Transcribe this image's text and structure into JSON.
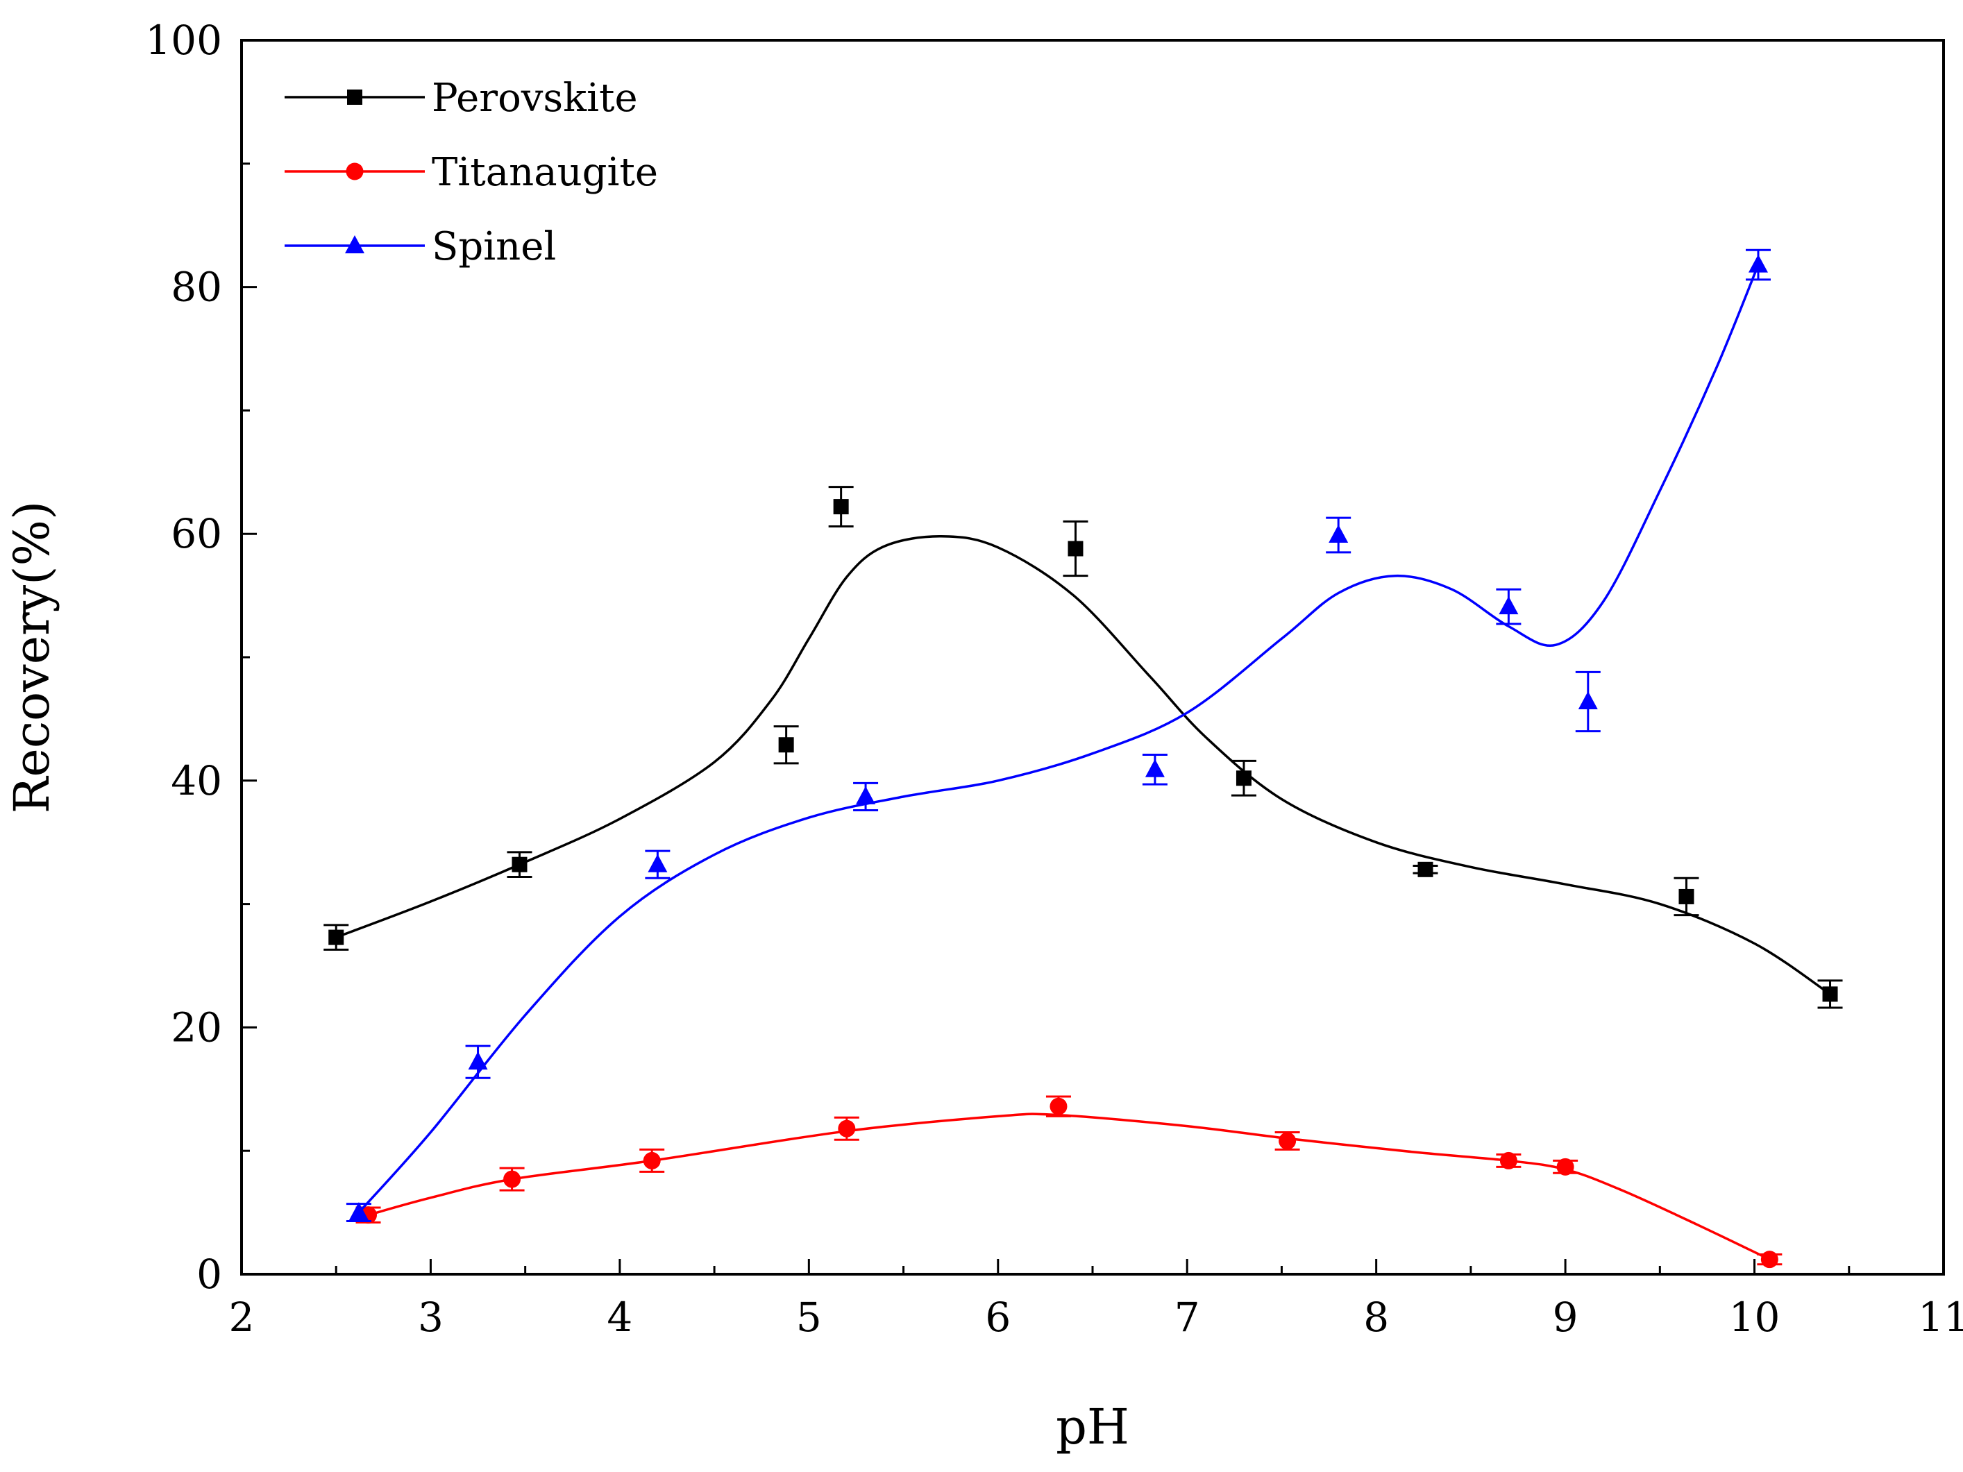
{
  "chart_data": {
    "type": "scatter",
    "title": "",
    "xlabel": "pH",
    "ylabel": "Recovery(%)",
    "xlim": [
      2,
      11
    ],
    "ylim": [
      0,
      100
    ],
    "xticks": [
      2,
      3,
      4,
      5,
      6,
      7,
      8,
      9,
      10,
      11
    ],
    "yticks": [
      0,
      20,
      40,
      60,
      80,
      100
    ],
    "legend_position": "top-left",
    "series": [
      {
        "name": "Perovskite",
        "color": "#000000",
        "marker": "square",
        "x": [
          2.5,
          3.47,
          4.88,
          5.17,
          6.41,
          7.3,
          8.26,
          9.64,
          10.4
        ],
        "y": [
          27.3,
          33.2,
          42.9,
          62.2,
          58.8,
          40.2,
          32.8,
          30.6,
          22.7
        ],
        "err": [
          1.0,
          1.0,
          1.5,
          1.6,
          2.2,
          1.4,
          0.3,
          1.5,
          1.1
        ],
        "curve_x": [
          2.5,
          3.0,
          3.5,
          4.0,
          4.5,
          4.8,
          5.0,
          5.2,
          5.4,
          5.7,
          6.0,
          6.4,
          6.8,
          7.1,
          7.5,
          8.0,
          8.5,
          9.0,
          9.5,
          10.0,
          10.4
        ],
        "curve_y": [
          27.3,
          30.2,
          33.4,
          36.9,
          41.5,
          46.5,
          51.5,
          56.5,
          59.0,
          59.8,
          58.9,
          55.0,
          48.5,
          43.5,
          38.5,
          35.0,
          33.0,
          31.6,
          30.0,
          26.8,
          22.7
        ]
      },
      {
        "name": "Titanaugite",
        "color": "#ff0000",
        "marker": "circle",
        "x": [
          2.67,
          3.43,
          4.17,
          5.2,
          6.32,
          7.53,
          8.7,
          9.0,
          10.08
        ],
        "y": [
          4.8,
          7.7,
          9.2,
          11.8,
          13.6,
          10.8,
          9.2,
          8.7,
          1.2
        ],
        "err": [
          0.6,
          0.9,
          0.9,
          0.9,
          0.8,
          0.7,
          0.5,
          0.5,
          0.4
        ],
        "curve_x": [
          2.67,
          3.0,
          3.43,
          4.17,
          5.2,
          6.0,
          6.32,
          7.0,
          7.53,
          8.2,
          8.7,
          9.0,
          9.3,
          9.7,
          10.08
        ],
        "curve_y": [
          4.8,
          6.2,
          7.7,
          9.2,
          11.6,
          12.8,
          12.9,
          12.0,
          11.0,
          9.9,
          9.2,
          8.5,
          6.8,
          4.0,
          1.2
        ]
      },
      {
        "name": "Spinel",
        "color": "#0000ff",
        "marker": "triangle",
        "x": [
          2.62,
          3.25,
          4.2,
          5.3,
          6.83,
          7.8,
          8.7,
          9.12,
          10.02
        ],
        "y": [
          5.0,
          17.2,
          33.2,
          38.7,
          40.9,
          59.9,
          54.1,
          46.4,
          81.8
        ],
        "err": [
          0.7,
          1.3,
          1.1,
          1.1,
          1.2,
          1.4,
          1.4,
          2.4,
          1.2
        ],
        "curve_x": [
          2.62,
          3.0,
          3.5,
          4.0,
          4.5,
          5.0,
          5.5,
          6.0,
          6.5,
          7.0,
          7.5,
          7.8,
          8.1,
          8.4,
          8.7,
          8.95,
          9.2,
          9.5,
          9.8,
          10.02
        ],
        "curve_y": [
          5.0,
          11.5,
          21.0,
          29.0,
          34.0,
          37.0,
          38.7,
          40.0,
          42.2,
          45.5,
          51.5,
          55.2,
          56.6,
          55.5,
          52.5,
          51.0,
          54.5,
          63.5,
          73.5,
          81.8
        ]
      }
    ]
  }
}
